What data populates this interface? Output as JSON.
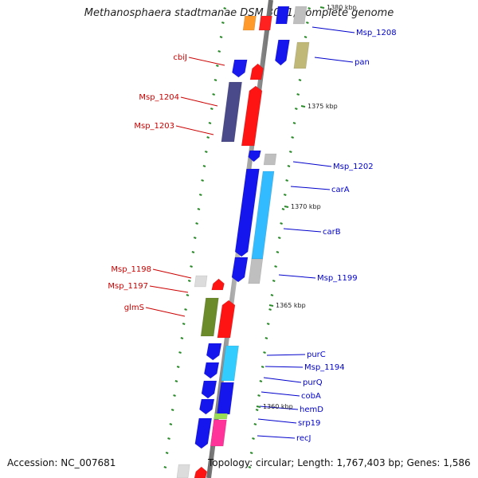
{
  "title": "Methanosphaera stadtmanae DSM 3091, complete genome",
  "footer": {
    "accession": "Accession: NC_007681",
    "summary": "Topology: circular; Length: 1,767,403 bp; Genes: 1,586"
  },
  "colors": {
    "backbone": "#808080",
    "forward_label": "#0000cc",
    "reverse_label": "#cc0000",
    "tick": "#2a8a2a"
  },
  "tick_labels": [
    "1380 kbp",
    "1375 kbp",
    "1370 kbp",
    "1365 kbp",
    "1360 kbp"
  ],
  "genes_right": [
    "Msp_1208",
    "pan",
    "Msp_1202",
    "carA",
    "carB",
    "Msp_1199",
    "purC",
    "Msp_1194",
    "purQ",
    "cobA",
    "hemD",
    "srp19",
    "recJ"
  ],
  "genes_left": [
    "cbiJ",
    "Msp_1204",
    "Msp_1203",
    "Msp_1198",
    "Msp_1197",
    "glmS"
  ]
}
